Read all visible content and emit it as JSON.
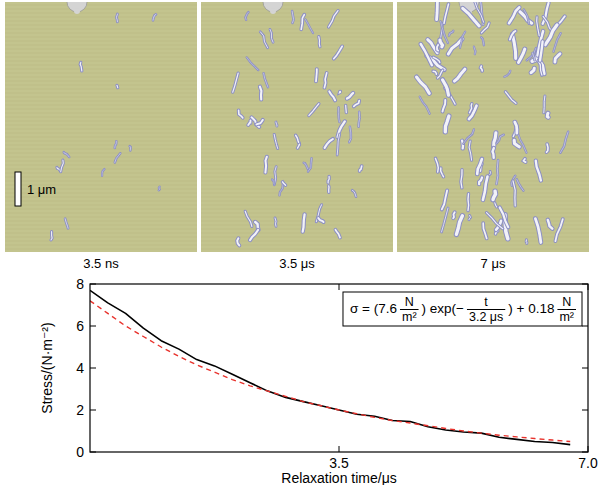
{
  "images": {
    "labels": [
      "3.5 ns",
      "3.5 μs",
      "7 μs"
    ],
    "scale_bar": "1 μm"
  },
  "chart_data": {
    "type": "line",
    "x_label": "Relaxation time/μs",
    "y_label": "Stress/(N·m⁻²)",
    "x": [
      0,
      0.25,
      0.5,
      0.75,
      1,
      1.25,
      1.5,
      1.75,
      2,
      2.25,
      2.5,
      2.75,
      3,
      3.25,
      3.5,
      3.75,
      4,
      4.25,
      4.5,
      4.75,
      5,
      5.25,
      5.5,
      5.75,
      6,
      6.25,
      6.5,
      6.75
    ],
    "series": [
      {
        "color": "#000000",
        "line_style": "solid",
        "values": [
          7.7,
          7.1,
          6.6,
          5.9,
          5.3,
          4.9,
          4.4,
          4.1,
          3.7,
          3.3,
          2.9,
          2.6,
          2.4,
          2.2,
          2.0,
          1.8,
          1.7,
          1.5,
          1.45,
          1.2,
          1.05,
          0.95,
          0.9,
          0.7,
          0.6,
          0.5,
          0.45,
          0.35
        ]
      },
      {
        "color": "#e8322c",
        "line_style": "dashed",
        "values": [
          7.2,
          6.6,
          6.0,
          5.5,
          5.0,
          4.55,
          4.15,
          3.8,
          3.45,
          3.15,
          2.9,
          2.65,
          2.4,
          2.2,
          2.0,
          1.82,
          1.65,
          1.5,
          1.38,
          1.25,
          1.12,
          1.0,
          0.9,
          0.8,
          0.72,
          0.64,
          0.57,
          0.5
        ]
      }
    ],
    "xlim": [
      0,
      7
    ],
    "ylim": [
      0,
      8
    ],
    "xticks": [
      3.5,
      {
        "value": 7,
        "label": "7.0"
      }
    ],
    "yticks": [
      0,
      2,
      4,
      6,
      8
    ],
    "annotations": [
      {
        "parts": [
          {
            "text": "σ = (7.6"
          },
          {
            "num": "N",
            "den": "m²"
          },
          {
            "text": ") exp(−"
          },
          {
            "num": "t",
            "den": "3.2 μs"
          },
          {
            "text": ") + 0.18"
          },
          {
            "num": "N",
            "den": "m²"
          }
        ]
      }
    ]
  }
}
